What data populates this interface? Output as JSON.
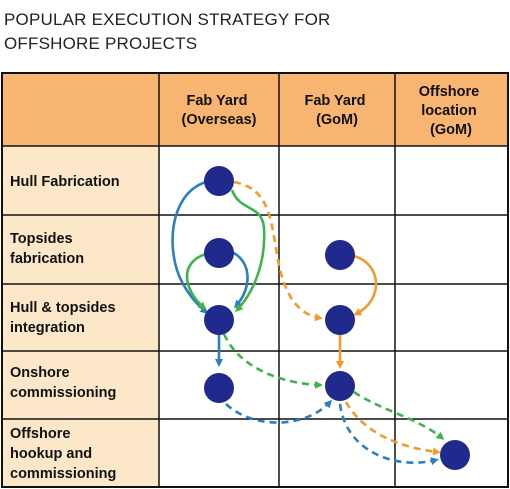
{
  "title": {
    "line1": "POPULAR EXECUTION STRATEGY FOR",
    "line2": "OFFSHORE PROJECTS"
  },
  "columns": [
    {
      "lines": [
        "Fab Yard",
        "(Overseas)"
      ]
    },
    {
      "lines": [
        "Fab Yard",
        "(GoM)"
      ]
    },
    {
      "lines": [
        "Offshore",
        "location",
        "(GoM)"
      ]
    }
  ],
  "rows": [
    {
      "lines": [
        "Hull Fabrication"
      ]
    },
    {
      "lines": [
        "Topsides",
        "fabrication"
      ]
    },
    {
      "lines": [
        "Hull & topsides",
        "integration"
      ]
    },
    {
      "lines": [
        "Onshore",
        "commissioning"
      ]
    },
    {
      "lines": [
        "Offshore",
        "hookup and",
        "commissioning"
      ]
    }
  ],
  "colors": {
    "header_bg": "#f8b571",
    "row_label_bg": "#fde7c9",
    "node": "#1f2a8c",
    "blue_arrow": "#2a7ec2",
    "green_arrow": "#3db54a",
    "orange_arrow": "#f39a2a",
    "grid": "#111111"
  }
}
